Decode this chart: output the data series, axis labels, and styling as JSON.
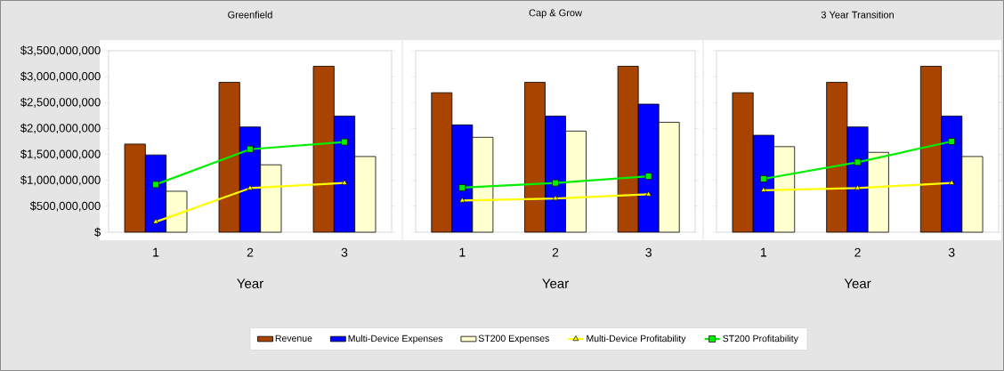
{
  "chart_data": [
    {
      "type": "bar",
      "title": "Greenfield",
      "xlabel": "Year",
      "categories": [
        "1",
        "2",
        "3"
      ],
      "legend": "bottom",
      "ylim": [
        0,
        3500000000
      ],
      "yticks": [
        {
          "value": 0,
          "label": "$"
        },
        {
          "value": 500000000,
          "label": "$500,000,000"
        },
        {
          "value": 1000000000,
          "label": "$1,000,000,000"
        },
        {
          "value": 1500000000,
          "label": "$1,500,000,000"
        },
        {
          "value": 2000000000,
          "label": "$2,000,000,000"
        },
        {
          "value": 2500000000,
          "label": "$2,500,000,000"
        },
        {
          "value": 3000000000,
          "label": "$3,000,000,000"
        },
        {
          "value": 3500000000,
          "label": "$3,500,000,000"
        }
      ],
      "series": [
        {
          "name": "Revenue",
          "color": "#a94300",
          "values": [
            1700000000,
            2890000000,
            3200000000
          ]
        },
        {
          "name": "Multi-Device Expenses",
          "color": "#0000ff",
          "values": [
            1490000000,
            2030000000,
            2240000000
          ]
        },
        {
          "name": "ST200 Expenses",
          "color": "#ffffd0",
          "values": [
            790000000,
            1300000000,
            1460000000
          ]
        },
        {
          "name": "Multi-Device Profitability",
          "type": "line",
          "marker": "triangle",
          "color": "#ffff00",
          "values": [
            200000000,
            850000000,
            950000000
          ]
        },
        {
          "name": "ST200 Profitability",
          "type": "line",
          "marker": "square",
          "color": "#00ee00",
          "values": [
            920000000,
            1600000000,
            1740000000
          ]
        }
      ]
    },
    {
      "type": "bar",
      "title": "Cap & Grow",
      "xlabel": "Year",
      "categories": [
        "1",
        "2",
        "3"
      ],
      "tick_labels": "x",
      "ylim": [
        0,
        3500000000
      ],
      "yticks": [
        {
          "value": 0,
          "label": null
        },
        {
          "value": 500000000,
          "label": null
        },
        {
          "value": 1000000000,
          "label": null
        },
        {
          "value": 1500000000,
          "label": null
        },
        {
          "value": 2000000000,
          "label": null
        },
        {
          "value": 2500000000,
          "label": null
        },
        {
          "value": 3000000000,
          "label": null
        },
        {
          "value": 3500000000,
          "label": null
        }
      ],
      "series": [
        {
          "color": "#a94300",
          "values": [
            2690000000,
            2890000000,
            3200000000
          ]
        },
        {
          "color": "#0000ff",
          "values": [
            2070000000,
            2240000000,
            2470000000
          ]
        },
        {
          "color": "#ffffd0",
          "values": [
            1830000000,
            1950000000,
            2120000000
          ]
        },
        {
          "type": "line",
          "marker": "triangle",
          "color": "#ffff00",
          "values": [
            610000000,
            650000000,
            730000000
          ]
        },
        {
          "type": "line",
          "marker": "square",
          "color": "#00ee00",
          "values": [
            860000000,
            950000000,
            1080000000
          ]
        }
      ]
    },
    {
      "type": "bar",
      "title": "3 Year Transition",
      "xlabel": "Year",
      "categories": [
        "1",
        "2",
        "3"
      ],
      "tick_labels": "x",
      "ylim": [
        0,
        3500000000
      ],
      "yticks": [
        {
          "value": 0,
          "label": null
        },
        {
          "value": 500000000,
          "label": null
        },
        {
          "value": 1000000000,
          "label": null
        },
        {
          "value": 1500000000,
          "label": null
        },
        {
          "value": 2000000000,
          "label": null
        },
        {
          "value": 2500000000,
          "label": null
        },
        {
          "value": 3000000000,
          "label": null
        },
        {
          "value": 3500000000,
          "label": null
        }
      ],
      "series": [
        {
          "color": "#a94300",
          "values": [
            2690000000,
            2890000000,
            3200000000
          ]
        },
        {
          "color": "#0000ff",
          "values": [
            1870000000,
            2030000000,
            2240000000
          ]
        },
        {
          "color": "#ffffd0",
          "values": [
            1650000000,
            1540000000,
            1460000000
          ]
        },
        {
          "type": "line",
          "marker": "triangle",
          "color": "#ffff00",
          "values": [
            810000000,
            850000000,
            950000000
          ]
        },
        {
          "type": "line",
          "marker": "square",
          "color": "#00ee00",
          "values": [
            1030000000,
            1350000000,
            1750000000
          ]
        }
      ]
    }
  ]
}
